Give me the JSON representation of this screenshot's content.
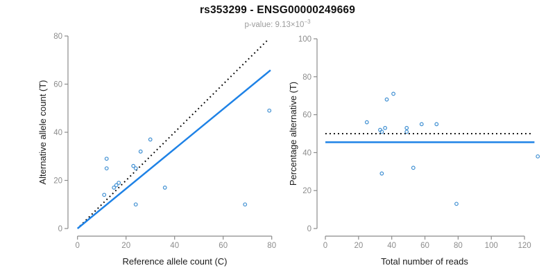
{
  "header": {
    "title": "rs353299 - ENSG00000249669",
    "subtitle_prefix": "p-value: 9.13×10",
    "subtitle_exponent": "−3"
  },
  "colors": {
    "point": "#3f8fd2",
    "regression": "#1e82e6",
    "dotted": "#000000",
    "axis": "#8b8b8b",
    "tick_label": "#8c8c8c",
    "axis_label": "#1a1a1a",
    "title": "#111111",
    "subtitle": "#9b9b9b"
  },
  "chart_data": [
    {
      "type": "scatter",
      "name": "allele-counts-plot",
      "xlabel": "Reference allele count (C)",
      "ylabel": "Alternative allele count (T)",
      "xlim": [
        0,
        80
      ],
      "ylim": [
        0,
        80
      ],
      "xticks": [
        0,
        20,
        40,
        60,
        80
      ],
      "yticks": [
        0,
        20,
        40,
        60,
        80
      ],
      "grid": false,
      "points": [
        [
          11,
          14
        ],
        [
          12,
          25
        ],
        [
          12,
          29
        ],
        [
          15,
          17
        ],
        [
          16,
          18
        ],
        [
          17,
          19
        ],
        [
          23,
          26
        ],
        [
          24,
          25
        ],
        [
          24,
          10
        ],
        [
          26,
          32
        ],
        [
          30,
          37
        ],
        [
          36,
          17
        ],
        [
          69,
          10
        ],
        [
          79,
          49
        ]
      ],
      "lines": [
        {
          "name": "identity-line",
          "style": "dotted",
          "from": [
            1,
            1
          ],
          "to": [
            78.5,
            78.5
          ]
        },
        {
          "name": "regression-line",
          "style": "solid",
          "from": [
            0,
            0
          ],
          "to": [
            79.5,
            65.8
          ]
        }
      ]
    },
    {
      "type": "scatter",
      "name": "percentage-plot",
      "xlabel": "Total number of reads",
      "ylabel": "Percentage alternative (T)",
      "xlim": [
        0,
        120
      ],
      "ylim": [
        0,
        100
      ],
      "xticks": [
        0,
        20,
        40,
        60,
        80,
        100,
        120
      ],
      "yticks": [
        0,
        20,
        40,
        60,
        80,
        100
      ],
      "grid": false,
      "points": [
        [
          25,
          56
        ],
        [
          33,
          52
        ],
        [
          34,
          51
        ],
        [
          34,
          29
        ],
        [
          36,
          53
        ],
        [
          37,
          68
        ],
        [
          41,
          71
        ],
        [
          49,
          53
        ],
        [
          49,
          51
        ],
        [
          53,
          32
        ],
        [
          58,
          55
        ],
        [
          67,
          55
        ],
        [
          79,
          13
        ],
        [
          128,
          38
        ]
      ],
      "lines": [
        {
          "name": "expected-percentage-line",
          "style": "dotted",
          "from": [
            0,
            50
          ],
          "to": [
            125,
            50
          ]
        },
        {
          "name": "observed-percentage-line",
          "style": "solid",
          "from": [
            0,
            45.5
          ],
          "to": [
            126,
            45.5
          ]
        }
      ]
    }
  ]
}
